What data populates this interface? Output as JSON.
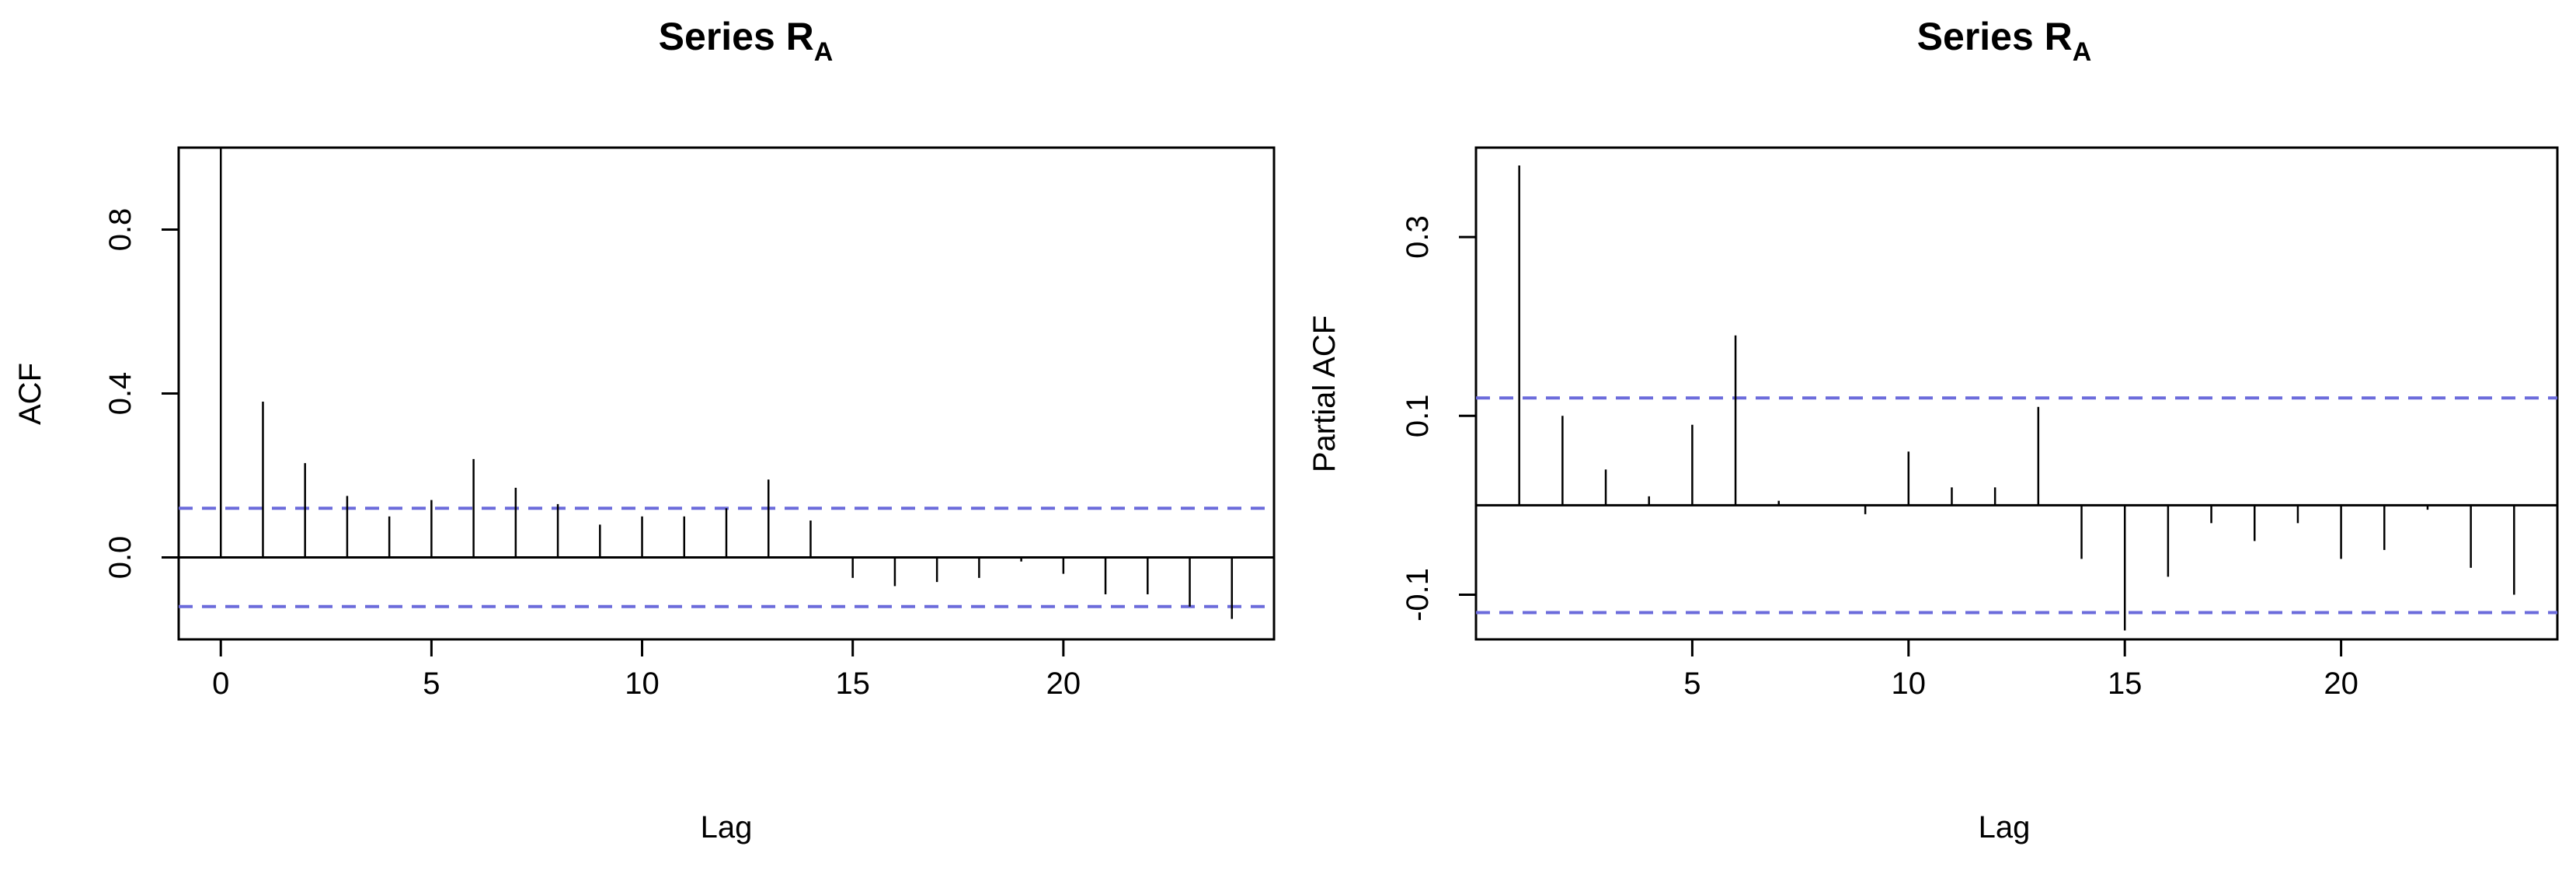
{
  "chart_data": [
    {
      "type": "bar",
      "title": "Series R",
      "title_subscript": "A",
      "xlabel": "Lag",
      "ylabel": "ACF",
      "xlim": [
        -1,
        25
      ],
      "ylim": [
        -0.2,
        1.0
      ],
      "xticks": [
        0,
        5,
        10,
        15,
        20
      ],
      "yticks": [
        0.0,
        0.4,
        0.8
      ],
      "ytick_labels": [
        "0.0",
        "0.4",
        "0.8"
      ],
      "confidence_bound": 0.12,
      "confidence_color": "#6b6bdb",
      "lags": [
        0,
        1,
        2,
        3,
        4,
        5,
        6,
        7,
        8,
        9,
        10,
        11,
        12,
        13,
        14,
        15,
        16,
        17,
        18,
        19,
        20,
        21,
        22,
        23,
        24
      ],
      "values": [
        1.0,
        0.38,
        0.23,
        0.15,
        0.1,
        0.14,
        0.24,
        0.17,
        0.13,
        0.08,
        0.1,
        0.1,
        0.12,
        0.19,
        0.09,
        -0.05,
        -0.07,
        -0.06,
        -0.05,
        -0.01,
        -0.04,
        -0.09,
        -0.09,
        -0.12,
        -0.15
      ]
    },
    {
      "type": "bar",
      "title": "Series R",
      "title_subscript": "A",
      "xlabel": "Lag",
      "ylabel": "Partial ACF",
      "xlim": [
        0,
        25
      ],
      "ylim": [
        -0.15,
        0.4
      ],
      "xticks": [
        5,
        10,
        15,
        20
      ],
      "yticks": [
        -0.1,
        0.1,
        0.3
      ],
      "ytick_labels": [
        "-0.1",
        "0.1",
        "0.3"
      ],
      "confidence_bound": 0.12,
      "confidence_color": "#6b6bdb",
      "lags": [
        1,
        2,
        3,
        4,
        5,
        6,
        7,
        8,
        9,
        10,
        11,
        12,
        13,
        14,
        15,
        16,
        17,
        18,
        19,
        20,
        21,
        22,
        23,
        24
      ],
      "values": [
        0.38,
        0.1,
        0.04,
        0.01,
        0.09,
        0.19,
        0.005,
        0.0,
        -0.01,
        0.06,
        0.02,
        0.02,
        0.11,
        -0.06,
        -0.14,
        -0.08,
        -0.02,
        -0.04,
        -0.02,
        -0.06,
        -0.05,
        -0.005,
        -0.07,
        -0.1
      ]
    }
  ]
}
